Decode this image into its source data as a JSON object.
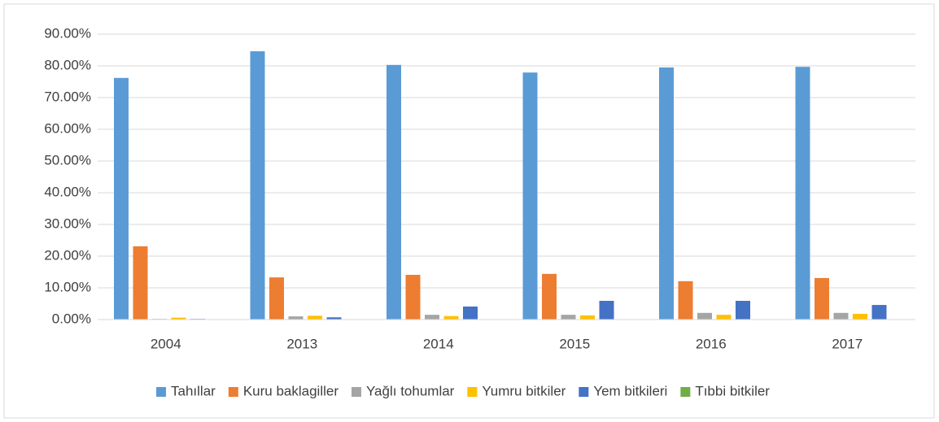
{
  "chart_data": {
    "type": "bar",
    "categories": [
      "2004",
      "2013",
      "2014",
      "2015",
      "2016",
      "2017"
    ],
    "series": [
      {
        "name": "Tahıllar",
        "color": "#5B9BD5",
        "values": [
          76.2,
          84.6,
          80.3,
          77.9,
          79.5,
          79.7
        ]
      },
      {
        "name": "Kuru baklagiller",
        "color": "#ED7D31",
        "values": [
          23.1,
          13.3,
          14.1,
          14.4,
          12.1,
          13.1
        ]
      },
      {
        "name": "Yağlı tohumlar",
        "color": "#A5A5A5",
        "values": [
          0.2,
          1.0,
          1.5,
          1.5,
          2.1,
          2.1
        ]
      },
      {
        "name": "Yumru bitkiler",
        "color": "#FFC000",
        "values": [
          0.6,
          1.2,
          1.1,
          1.3,
          1.5,
          1.8
        ]
      },
      {
        "name": "Yem bitkileri",
        "color": "#4472C4",
        "values": [
          0.2,
          0.7,
          4.1,
          5.9,
          5.9,
          4.6
        ]
      },
      {
        "name": "Tıbbi bitkiler",
        "color": "#70AD47",
        "values": [
          0,
          0,
          0,
          0,
          0,
          0
        ]
      }
    ],
    "ylim": [
      0,
      90
    ],
    "yticks": [
      {
        "value": 0,
        "label": "0.00%"
      },
      {
        "value": 10,
        "label": "10.00%"
      },
      {
        "value": 20,
        "label": "20.00%"
      },
      {
        "value": 30,
        "label": "30.00%"
      },
      {
        "value": 40,
        "label": "40.00%"
      },
      {
        "value": 50,
        "label": "50.00%"
      },
      {
        "value": 60,
        "label": "60.00%"
      },
      {
        "value": 70,
        "label": "70.00%"
      },
      {
        "value": 80,
        "label": "80.00%"
      },
      {
        "value": 90,
        "label": "90.00%"
      }
    ],
    "grid": true,
    "legend": "bottom"
  }
}
